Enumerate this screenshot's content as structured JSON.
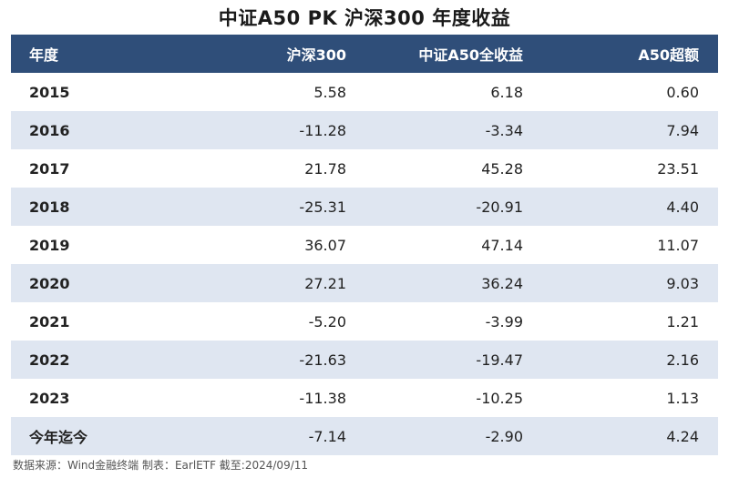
{
  "title": "中证A50 PK 沪深300 年度收益",
  "source": "数据来源：Wind金融终端 制表：EarlETF 截至:2024/09/11",
  "colors": {
    "header_bg": "#2f4e79",
    "alt_row": "#dfe6f1"
  },
  "chart_data": {
    "type": "table",
    "title": "中证A50 PK 沪深300 年度收益",
    "columns": [
      "年度",
      "沪深300",
      "中证A50全收益",
      "A50超额"
    ],
    "rows": [
      [
        "2015",
        "5.58",
        "6.18",
        "0.60"
      ],
      [
        "2016",
        "-11.28",
        "-3.34",
        "7.94"
      ],
      [
        "2017",
        "21.78",
        "45.28",
        "23.51"
      ],
      [
        "2018",
        "-25.31",
        "-20.91",
        "4.40"
      ],
      [
        "2019",
        "36.07",
        "47.14",
        "11.07"
      ],
      [
        "2020",
        "27.21",
        "36.24",
        "9.03"
      ],
      [
        "2021",
        "-5.20",
        "-3.99",
        "1.21"
      ],
      [
        "2022",
        "-21.63",
        "-19.47",
        "2.16"
      ],
      [
        "2023",
        "-11.38",
        "-10.25",
        "1.13"
      ],
      [
        "今年迄今",
        "-7.14",
        "-2.90",
        "4.24"
      ]
    ]
  }
}
